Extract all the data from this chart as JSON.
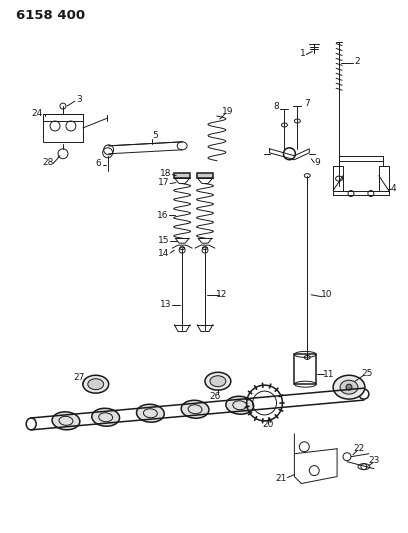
{
  "title": "6158 400",
  "bg_color": "#ffffff",
  "line_color": "#1a1a1a",
  "title_fontsize": 9.5,
  "label_fontsize": 6.5,
  "fig_width": 4.08,
  "fig_height": 5.33,
  "dpi": 100
}
